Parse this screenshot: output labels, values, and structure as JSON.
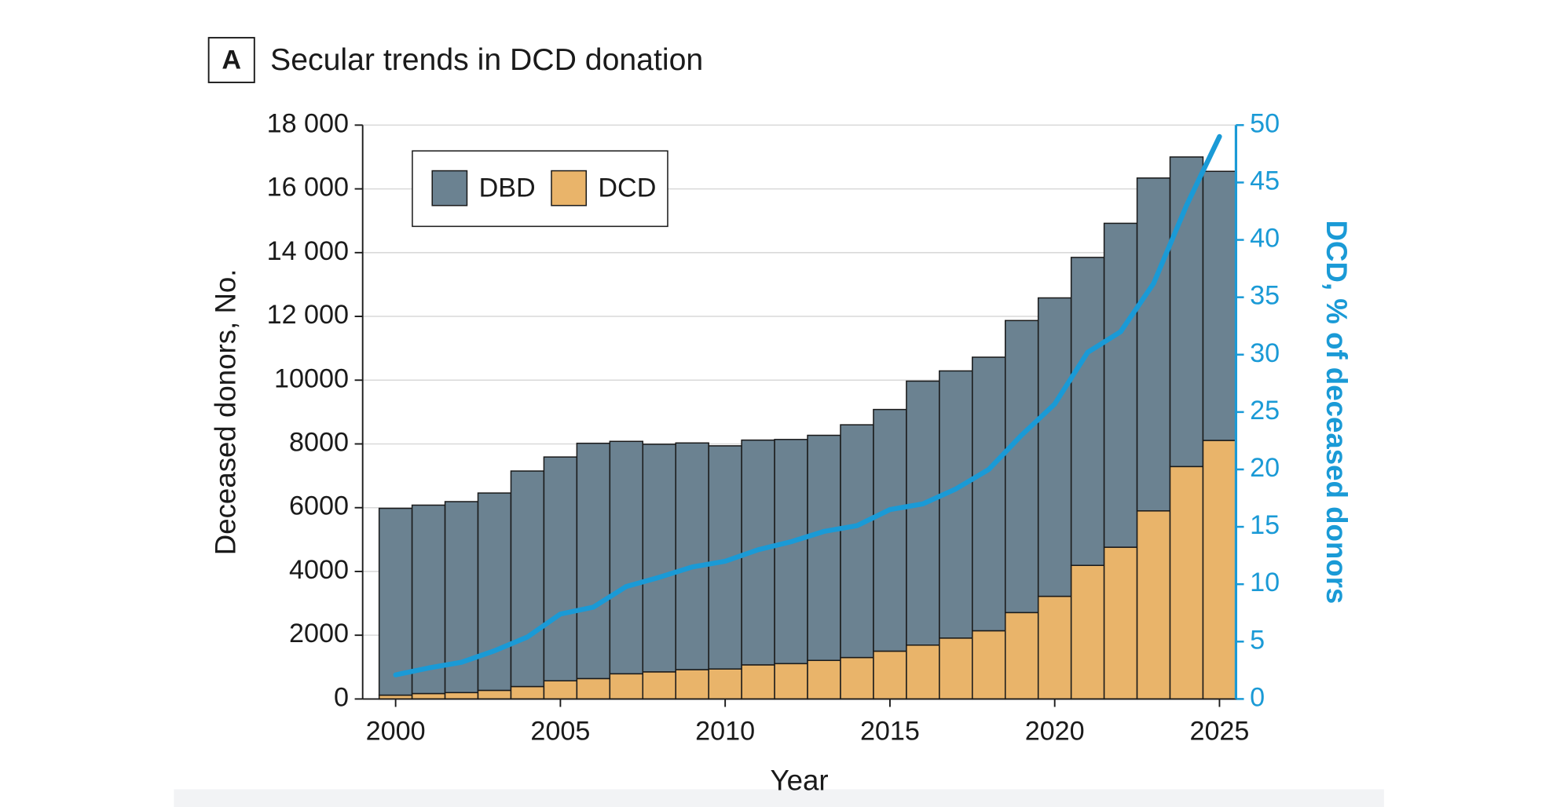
{
  "chart_data": {
    "type": "stacked-bar-line",
    "panel_label": "A",
    "title": "Secular trends in DCD donation",
    "xlabel": "Year",
    "ylabel": "Deceased donors, No.",
    "y2label": "DCD, % of deceased donors",
    "x": [
      2000,
      2001,
      2002,
      2003,
      2004,
      2005,
      2006,
      2007,
      2008,
      2009,
      2010,
      2011,
      2012,
      2013,
      2014,
      2015,
      2016,
      2017,
      2018,
      2019,
      2020,
      2021,
      2022,
      2023,
      2024,
      2025
    ],
    "series": [
      {
        "name": "DBD",
        "color": "#6b8291",
        "values": [
          5860,
          5910,
          5990,
          6190,
          6760,
          7020,
          7380,
          7290,
          7140,
          7110,
          7000,
          7050,
          7030,
          7060,
          7300,
          7580,
          8280,
          8380,
          8580,
          9160,
          9360,
          9660,
          10160,
          10440,
          9710,
          8440
        ]
      },
      {
        "name": "DCD",
        "color": "#e9b46a",
        "values": [
          120,
          170,
          200,
          270,
          390,
          570,
          640,
          790,
          850,
          920,
          940,
          1070,
          1110,
          1210,
          1300,
          1500,
          1690,
          1910,
          2140,
          2710,
          3220,
          4190,
          4760,
          5900,
          7290,
          8110
        ]
      },
      {
        "type": "line",
        "axis": "y2",
        "color": "#1a9ad6",
        "values": [
          2.1,
          2.7,
          3.2,
          4.2,
          5.4,
          7.4,
          8.0,
          9.8,
          10.6,
          11.5,
          12.0,
          13.0,
          13.7,
          14.6,
          15.1,
          16.5,
          17.0,
          18.3,
          20.0,
          23.0,
          25.7,
          30.2,
          32.0,
          36.2,
          43.0,
          49.0
        ]
      }
    ],
    "xlim": [
      1999,
      2025.5
    ],
    "xticks": [
      2000,
      2005,
      2010,
      2015,
      2020,
      2025
    ],
    "ylim": [
      0,
      18000
    ],
    "yticks": [
      0,
      2000,
      4000,
      6000,
      8000,
      10000,
      {
        "value": 12000,
        "label": "12 000"
      },
      {
        "value": 14000,
        "label": "14 000"
      },
      {
        "value": 16000,
        "label": "16 000"
      },
      {
        "value": 18000,
        "label": "18 000"
      }
    ],
    "y2lim": [
      0,
      50
    ],
    "y2ticks": [
      0,
      5,
      10,
      15,
      20,
      25,
      30,
      35,
      40,
      45,
      50
    ],
    "grid": true,
    "legend": "upper left"
  }
}
